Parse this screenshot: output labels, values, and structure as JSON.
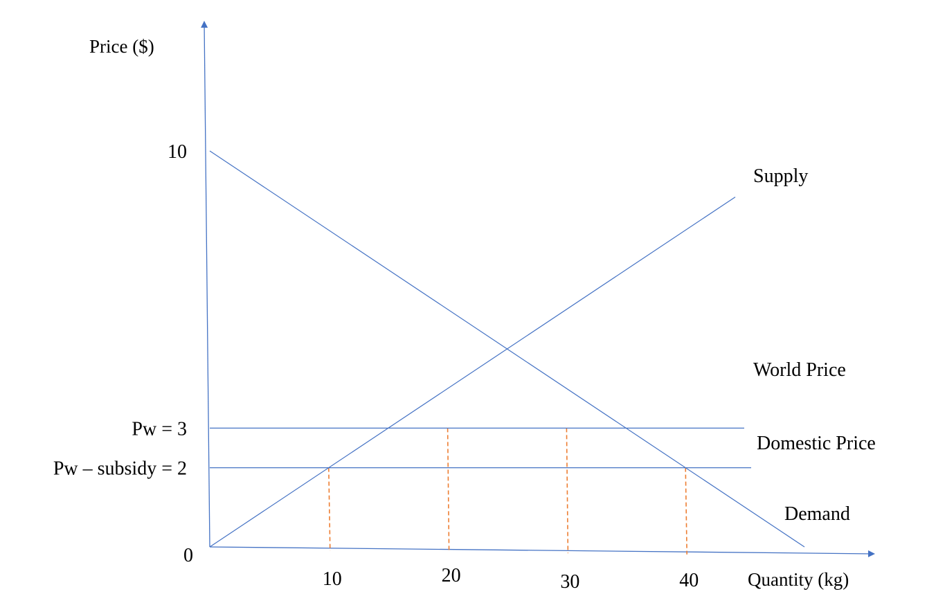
{
  "colors": {
    "line": "#4472C4",
    "guide": "#ED7D31",
    "text": "#000000"
  },
  "chart_data": {
    "type": "line",
    "ylabel": "Price ($)",
    "xlabel": "Quantity (kg)",
    "xlim": [
      0,
      50
    ],
    "ylim": [
      0,
      13
    ],
    "origin_label": "0",
    "x_ticks": [
      {
        "value": 10,
        "label": "10"
      },
      {
        "value": 20,
        "label": "20"
      },
      {
        "value": 30,
        "label": "30"
      },
      {
        "value": 40,
        "label": "40"
      }
    ],
    "y_ticks": [
      {
        "value": 10,
        "label": "10"
      },
      {
        "value": 3,
        "label": "Pw = 3"
      },
      {
        "value": 2,
        "label": "Pw – subsidy = 2"
      }
    ],
    "series": [
      {
        "name": "Supply",
        "x": [
          0,
          50
        ],
        "y": [
          0,
          10
        ]
      },
      {
        "name": "Demand",
        "x": [
          0,
          50
        ],
        "y": [
          10,
          0
        ]
      },
      {
        "name": "World Price",
        "x": [
          0,
          50
        ],
        "y": [
          3,
          3
        ]
      },
      {
        "name": "Domestic Price",
        "x": [
          0,
          50
        ],
        "y": [
          2,
          2
        ]
      }
    ],
    "guides": [
      {
        "x": 10,
        "y": 2
      },
      {
        "x": 20,
        "y": 3
      },
      {
        "x": 30,
        "y": 3
      },
      {
        "x": 40,
        "y": 2
      }
    ],
    "grid": false,
    "legend": "none"
  }
}
